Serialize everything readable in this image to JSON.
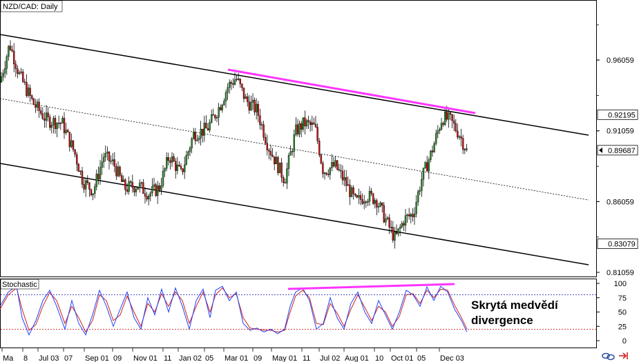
{
  "chart_data": [
    {
      "type": "candlestick",
      "title": "NZD/CAD: Daily",
      "x_labels": [
        "Ma",
        "8",
        "Jul 03",
        "07",
        "Sep 01",
        "09",
        "Nov 01",
        "11",
        "Jan 02",
        "05",
        "Mar 01",
        "09",
        "May 01",
        "11",
        "Jul 02",
        "Aug 01",
        "10",
        "Oct 01",
        "05",
        "Dec 03"
      ],
      "y_ticks": [
        "0.96059",
        "0.91059",
        "0.86059",
        "0.81059"
      ],
      "price_labels": [
        {
          "text": "0.92195",
          "value": 0.92195
        },
        {
          "text": "0.89687",
          "value": 0.89687
        },
        {
          "text": "0.83079",
          "value": 0.83079
        }
      ],
      "ylim": [
        0.79,
        1.0
      ],
      "close_path": [
        [
          0,
          0.945
        ],
        [
          14,
          0.972
        ],
        [
          28,
          0.95
        ],
        [
          48,
          0.93
        ],
        [
          68,
          0.918
        ],
        [
          90,
          0.916
        ],
        [
          108,
          0.895
        ],
        [
          120,
          0.875
        ],
        [
          135,
          0.868
        ],
        [
          150,
          0.893
        ],
        [
          165,
          0.887
        ],
        [
          180,
          0.87
        ],
        [
          200,
          0.872
        ],
        [
          215,
          0.866
        ],
        [
          230,
          0.87
        ],
        [
          245,
          0.893
        ],
        [
          262,
          0.88
        ],
        [
          280,
          0.908
        ],
        [
          300,
          0.912
        ],
        [
          318,
          0.928
        ],
        [
          330,
          0.942
        ],
        [
          342,
          0.948
        ],
        [
          356,
          0.932
        ],
        [
          372,
          0.925
        ],
        [
          388,
          0.9
        ],
        [
          400,
          0.888
        ],
        [
          412,
          0.876
        ],
        [
          428,
          0.91
        ],
        [
          440,
          0.916
        ],
        [
          456,
          0.913
        ],
        [
          468,
          0.882
        ],
        [
          485,
          0.886
        ],
        [
          500,
          0.874
        ],
        [
          515,
          0.86
        ],
        [
          530,
          0.865
        ],
        [
          545,
          0.862
        ],
        [
          558,
          0.848
        ],
        [
          572,
          0.834
        ],
        [
          585,
          0.848
        ],
        [
          598,
          0.852
        ],
        [
          610,
          0.876
        ],
        [
          625,
          0.896
        ],
        [
          640,
          0.92
        ],
        [
          652,
          0.918
        ],
        [
          665,
          0.908
        ],
        [
          676,
          0.896
        ]
      ]
    },
    {
      "type": "line",
      "title": "Stochastic",
      "y_ticks": [
        "100",
        "75",
        "50",
        "25",
        "0"
      ],
      "ylim": [
        0,
        100
      ],
      "levels": [
        80,
        20
      ],
      "k_points": [
        [
          0,
          60
        ],
        [
          12,
          85
        ],
        [
          24,
          95
        ],
        [
          32,
          40
        ],
        [
          42,
          10
        ],
        [
          52,
          35
        ],
        [
          62,
          70
        ],
        [
          72,
          88
        ],
        [
          82,
          60
        ],
        [
          94,
          20
        ],
        [
          104,
          70
        ],
        [
          114,
          30
        ],
        [
          124,
          10
        ],
        [
          134,
          45
        ],
        [
          144,
          88
        ],
        [
          154,
          60
        ],
        [
          164,
          25
        ],
        [
          174,
          55
        ],
        [
          184,
          85
        ],
        [
          194,
          40
        ],
        [
          204,
          20
        ],
        [
          214,
          75
        ],
        [
          224,
          45
        ],
        [
          234,
          90
        ],
        [
          244,
          50
        ],
        [
          254,
          92
        ],
        [
          264,
          60
        ],
        [
          274,
          20
        ],
        [
          284,
          70
        ],
        [
          294,
          90
        ],
        [
          304,
          40
        ],
        [
          312,
          88
        ],
        [
          322,
          95
        ],
        [
          332,
          70
        ],
        [
          342,
          85
        ],
        [
          352,
          30
        ],
        [
          362,
          18
        ],
        [
          372,
          22
        ],
        [
          382,
          15
        ],
        [
          392,
          20
        ],
        [
          402,
          12
        ],
        [
          412,
          20
        ],
        [
          420,
          60
        ],
        [
          428,
          85
        ],
        [
          438,
          92
        ],
        [
          448,
          70
        ],
        [
          458,
          20
        ],
        [
          468,
          30
        ],
        [
          478,
          75
        ],
        [
          488,
          40
        ],
        [
          498,
          20
        ],
        [
          508,
          65
        ],
        [
          518,
          85
        ],
        [
          528,
          50
        ],
        [
          538,
          30
        ],
        [
          548,
          70
        ],
        [
          558,
          45
        ],
        [
          568,
          20
        ],
        [
          578,
          50
        ],
        [
          588,
          88
        ],
        [
          598,
          80
        ],
        [
          608,
          60
        ],
        [
          618,
          94
        ],
        [
          628,
          70
        ],
        [
          638,
          95
        ],
        [
          648,
          85
        ],
        [
          658,
          55
        ],
        [
          668,
          35
        ],
        [
          676,
          15
        ]
      ],
      "d_points": [
        [
          0,
          55
        ],
        [
          12,
          80
        ],
        [
          24,
          92
        ],
        [
          32,
          55
        ],
        [
          42,
          18
        ],
        [
          52,
          28
        ],
        [
          62,
          60
        ],
        [
          72,
          84
        ],
        [
          82,
          70
        ],
        [
          94,
          30
        ],
        [
          104,
          60
        ],
        [
          114,
          40
        ],
        [
          124,
          15
        ],
        [
          134,
          35
        ],
        [
          144,
          80
        ],
        [
          154,
          70
        ],
        [
          164,
          35
        ],
        [
          174,
          45
        ],
        [
          184,
          78
        ],
        [
          194,
          50
        ],
        [
          204,
          25
        ],
        [
          214,
          65
        ],
        [
          224,
          50
        ],
        [
          234,
          82
        ],
        [
          244,
          60
        ],
        [
          254,
          85
        ],
        [
          264,
          70
        ],
        [
          274,
          30
        ],
        [
          284,
          60
        ],
        [
          294,
          85
        ],
        [
          304,
          50
        ],
        [
          312,
          80
        ],
        [
          322,
          92
        ],
        [
          332,
          75
        ],
        [
          342,
          82
        ],
        [
          352,
          40
        ],
        [
          362,
          22
        ],
        [
          372,
          20
        ],
        [
          382,
          18
        ],
        [
          392,
          18
        ],
        [
          402,
          15
        ],
        [
          412,
          18
        ],
        [
          420,
          50
        ],
        [
          428,
          78
        ],
        [
          438,
          88
        ],
        [
          448,
          75
        ],
        [
          458,
          30
        ],
        [
          468,
          28
        ],
        [
          478,
          65
        ],
        [
          488,
          48
        ],
        [
          498,
          25
        ],
        [
          508,
          55
        ],
        [
          518,
          80
        ],
        [
          528,
          58
        ],
        [
          538,
          35
        ],
        [
          548,
          60
        ],
        [
          558,
          50
        ],
        [
          568,
          25
        ],
        [
          578,
          42
        ],
        [
          588,
          80
        ],
        [
          598,
          82
        ],
        [
          608,
          65
        ],
        [
          618,
          88
        ],
        [
          628,
          75
        ],
        [
          638,
          90
        ],
        [
          648,
          88
        ],
        [
          658,
          62
        ],
        [
          668,
          40
        ],
        [
          676,
          20
        ]
      ]
    }
  ],
  "annotation": {
    "line1": "Skrytá medvědí",
    "line2": "divergence"
  },
  "colors": {
    "bull": "#2e8b2e",
    "bear": "#c81414",
    "trendline": "#ff33ff",
    "stoch_k": "#2040ff",
    "stoch_d": "#d02020",
    "level_upper": "#3030c0",
    "level_lower": "#d02020"
  }
}
